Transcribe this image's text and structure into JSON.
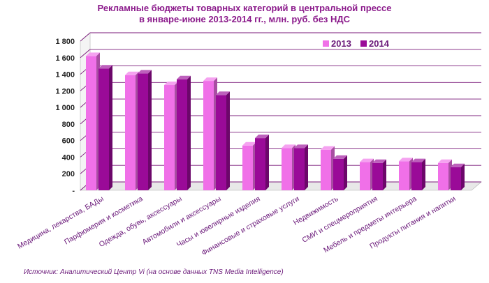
{
  "chart_data": {
    "type": "bar",
    "title_line1": "Рекламные бюджеты товарных категорий в центральной прессе",
    "title_line2": "в январе-июне 2013-2014 гг., млн. руб. без НДС",
    "source": "Источник: Аналитический Центр Vi (на основе данных TNS Media Intelligence)",
    "categories": [
      "Медицина, лекарства, БАДы",
      "Парфюмерия и косметика",
      "Одежда, обувь, аксессуары",
      "Автомобили и аксессуары",
      "Часы и ювелирные изделия",
      "Финансовые и страховые услуги",
      "Недвижимость",
      "СМИ и спецмероприятия",
      "Мебель и предметы интерьера",
      "Продукты питания и напитки"
    ],
    "series": [
      {
        "name": "2013",
        "color": "#f070e8",
        "values": [
          1620,
          1390,
          1270,
          1320,
          540,
          510,
          490,
          340,
          350,
          330
        ]
      },
      {
        "name": "2014",
        "color": "#9a0a98",
        "values": [
          1470,
          1410,
          1340,
          1150,
          630,
          510,
          380,
          330,
          340,
          280
        ]
      }
    ],
    "yticks": [
      "-",
      "200",
      "400",
      "600",
      "800",
      "1 000",
      "1 200",
      "1 400",
      "1 600",
      "1 800"
    ],
    "ylim": [
      0,
      1800
    ],
    "legend_position": "top-right",
    "grid": true
  }
}
